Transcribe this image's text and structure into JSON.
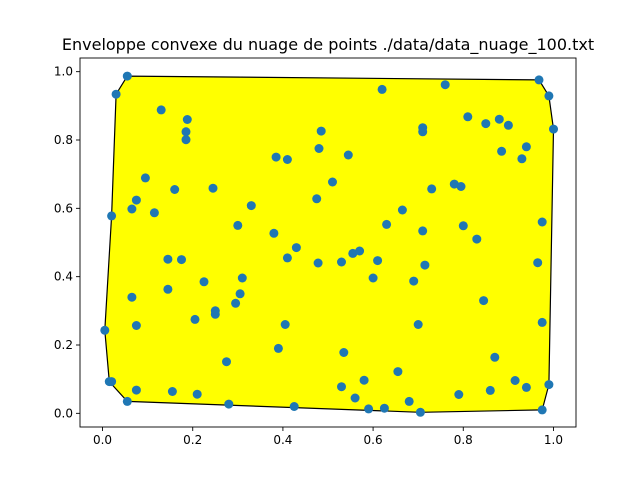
{
  "chart_data": {
    "type": "scatter",
    "title": "Enveloppe convexe du nuage de points ./data/data_nuage_100.txt",
    "xlabel": "",
    "ylabel": "",
    "xlim": [
      -0.05,
      1.05
    ],
    "ylim": [
      -0.04,
      1.04
    ],
    "xticks": [
      0.0,
      0.2,
      0.4,
      0.6,
      0.8,
      1.0
    ],
    "xtick_labels": [
      "0.0",
      "0.2",
      "0.4",
      "0.6",
      "0.8",
      "1.0"
    ],
    "yticks": [
      0.0,
      0.2,
      0.4,
      0.6,
      0.8,
      1.0
    ],
    "ytick_labels": [
      "0.0",
      "0.2",
      "0.4",
      "0.6",
      "0.8",
      "1.0"
    ],
    "grid": false,
    "hull_fill_color": "#ffff00",
    "hull_edge_color": "#000000",
    "point_color": "#1f77b4",
    "hull": [
      [
        0.005,
        0.243
      ],
      [
        0.015,
        0.093
      ],
      [
        0.055,
        0.035
      ],
      [
        0.705,
        0.003
      ],
      [
        0.975,
        0.01
      ],
      [
        0.99,
        0.084
      ],
      [
        1.0,
        0.832
      ],
      [
        0.99,
        0.929
      ],
      [
        0.968,
        0.976
      ],
      [
        0.055,
        0.987
      ],
      [
        0.03,
        0.934
      ],
      [
        0.02,
        0.578
      ]
    ],
    "points": [
      [
        0.055,
        0.987
      ],
      [
        0.03,
        0.934
      ],
      [
        0.13,
        0.888
      ],
      [
        0.188,
        0.86
      ],
      [
        0.185,
        0.824
      ],
      [
        0.185,
        0.801
      ],
      [
        0.095,
        0.689
      ],
      [
        0.16,
        0.655
      ],
      [
        0.245,
        0.659
      ],
      [
        0.075,
        0.624
      ],
      [
        0.065,
        0.598
      ],
      [
        0.115,
        0.587
      ],
      [
        0.02,
        0.578
      ],
      [
        0.145,
        0.451
      ],
      [
        0.175,
        0.45
      ],
      [
        0.145,
        0.363
      ],
      [
        0.065,
        0.34
      ],
      [
        0.225,
        0.385
      ],
      [
        0.205,
        0.275
      ],
      [
        0.25,
        0.3
      ],
      [
        0.25,
        0.29
      ],
      [
        0.075,
        0.257
      ],
      [
        0.005,
        0.243
      ],
      [
        0.275,
        0.151
      ],
      [
        0.015,
        0.093
      ],
      [
        0.075,
        0.068
      ],
      [
        0.155,
        0.064
      ],
      [
        0.21,
        0.056
      ],
      [
        0.055,
        0.035
      ],
      [
        0.28,
        0.027
      ],
      [
        0.33,
        0.608
      ],
      [
        0.3,
        0.55
      ],
      [
        0.31,
        0.396
      ],
      [
        0.305,
        0.35
      ],
      [
        0.295,
        0.322
      ],
      [
        0.385,
        0.75
      ],
      [
        0.41,
        0.743
      ],
      [
        0.38,
        0.527
      ],
      [
        0.43,
        0.485
      ],
      [
        0.41,
        0.455
      ],
      [
        0.405,
        0.26
      ],
      [
        0.39,
        0.19
      ],
      [
        0.425,
        0.02
      ],
      [
        0.485,
        0.826
      ],
      [
        0.48,
        0.775
      ],
      [
        0.545,
        0.756
      ],
      [
        0.51,
        0.677
      ],
      [
        0.475,
        0.628
      ],
      [
        0.478,
        0.44
      ],
      [
        0.53,
        0.443
      ],
      [
        0.555,
        0.468
      ],
      [
        0.57,
        0.475
      ],
      [
        0.61,
        0.447
      ],
      [
        0.6,
        0.396
      ],
      [
        0.535,
        0.178
      ],
      [
        0.53,
        0.078
      ],
      [
        0.56,
        0.045
      ],
      [
        0.58,
        0.097
      ],
      [
        0.59,
        0.013
      ],
      [
        0.62,
        0.948
      ],
      [
        0.63,
        0.553
      ],
      [
        0.665,
        0.595
      ],
      [
        0.625,
        0.015
      ],
      [
        0.655,
        0.122
      ],
      [
        0.68,
        0.035
      ],
      [
        0.705,
        0.003
      ],
      [
        0.71,
        0.836
      ],
      [
        0.71,
        0.824
      ],
      [
        0.73,
        0.657
      ],
      [
        0.71,
        0.534
      ],
      [
        0.715,
        0.434
      ],
      [
        0.69,
        0.387
      ],
      [
        0.7,
        0.26
      ],
      [
        0.76,
        0.962
      ],
      [
        0.81,
        0.868
      ],
      [
        0.78,
        0.671
      ],
      [
        0.795,
        0.664
      ],
      [
        0.8,
        0.549
      ],
      [
        0.83,
        0.51
      ],
      [
        0.845,
        0.33
      ],
      [
        0.85,
        0.848
      ],
      [
        0.88,
        0.861
      ],
      [
        0.885,
        0.767
      ],
      [
        0.9,
        0.843
      ],
      [
        0.93,
        0.745
      ],
      [
        0.94,
        0.78
      ],
      [
        0.87,
        0.164
      ],
      [
        0.86,
        0.067
      ],
      [
        0.79,
        0.055
      ],
      [
        0.915,
        0.096
      ],
      [
        0.94,
        0.076
      ],
      [
        0.968,
        0.976
      ],
      [
        0.99,
        0.929
      ],
      [
        1.0,
        0.832
      ],
      [
        0.975,
        0.56
      ],
      [
        0.965,
        0.441
      ],
      [
        0.975,
        0.266
      ],
      [
        0.99,
        0.084
      ],
      [
        0.975,
        0.01
      ],
      [
        0.02,
        0.093
      ]
    ]
  }
}
